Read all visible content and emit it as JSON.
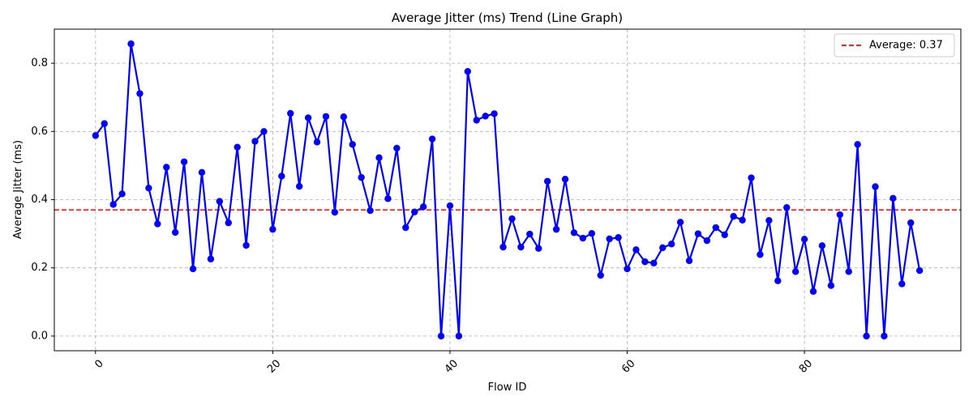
{
  "chart_data": {
    "type": "line",
    "title": "Average Jitter (ms) Trend (Line Graph)",
    "xlabel": "Flow ID",
    "ylabel": "Average Jitter (ms)",
    "xlim": [
      -4.65,
      97.65
    ],
    "ylim": [
      -0.043,
      0.9
    ],
    "xticks": [
      0,
      20,
      40,
      60,
      80
    ],
    "xtick_labels": [
      "0",
      "20",
      "40",
      "60",
      "80"
    ],
    "xtick_rotation": 45,
    "yticks": [
      0.0,
      0.2,
      0.4,
      0.6,
      0.8
    ],
    "ytick_labels": [
      "0.0",
      "0.2",
      "0.4",
      "0.6",
      "0.8"
    ],
    "grid": true,
    "legend_position": "top-right",
    "series": [
      {
        "color": "#0000ff",
        "marker": "circle",
        "x": [
          0,
          1,
          2,
          3,
          4,
          5,
          6,
          7,
          8,
          9,
          10,
          11,
          12,
          13,
          14,
          15,
          16,
          17,
          18,
          19,
          20,
          21,
          22,
          23,
          24,
          25,
          26,
          27,
          28,
          29,
          30,
          31,
          32,
          33,
          34,
          35,
          36,
          37,
          38,
          39,
          40,
          41,
          42,
          43,
          44,
          45,
          46,
          47,
          48,
          49,
          50,
          51,
          52,
          53,
          54,
          55,
          56,
          57,
          58,
          59,
          60,
          61,
          62,
          63,
          64,
          65,
          66,
          67,
          68,
          69,
          70,
          71,
          72,
          73,
          74,
          75,
          76,
          77,
          78,
          79,
          80,
          81,
          82,
          83,
          84,
          85,
          86,
          87,
          88,
          89,
          90,
          91,
          92,
          93
        ],
        "values": [
          0.588,
          0.623,
          0.386,
          0.417,
          0.857,
          0.711,
          0.434,
          0.329,
          0.495,
          0.304,
          0.511,
          0.197,
          0.48,
          0.226,
          0.395,
          0.332,
          0.554,
          0.266,
          0.571,
          0.6,
          0.313,
          0.469,
          0.653,
          0.439,
          0.64,
          0.569,
          0.644,
          0.363,
          0.643,
          0.562,
          0.465,
          0.368,
          0.523,
          0.403,
          0.551,
          0.318,
          0.364,
          0.379,
          0.578,
          0.0,
          0.382,
          0.0,
          0.776,
          0.633,
          0.645,
          0.652,
          0.261,
          0.344,
          0.261,
          0.299,
          0.257,
          0.454,
          0.313,
          0.46,
          0.303,
          0.287,
          0.301,
          0.178,
          0.285,
          0.289,
          0.197,
          0.253,
          0.218,
          0.214,
          0.259,
          0.27,
          0.334,
          0.221,
          0.3,
          0.28,
          0.318,
          0.297,
          0.351,
          0.34,
          0.464,
          0.239,
          0.339,
          0.162,
          0.377,
          0.189,
          0.284,
          0.131,
          0.265,
          0.148,
          0.356,
          0.189,
          0.562,
          0.0,
          0.438,
          0.0,
          0.404,
          0.153,
          0.332,
          0.192
        ]
      }
    ],
    "reference_lines": [
      {
        "type": "horizontal",
        "value": 0.37,
        "color": "#ff0000",
        "style": "dashed",
        "label": "Average: 0.37"
      }
    ]
  }
}
